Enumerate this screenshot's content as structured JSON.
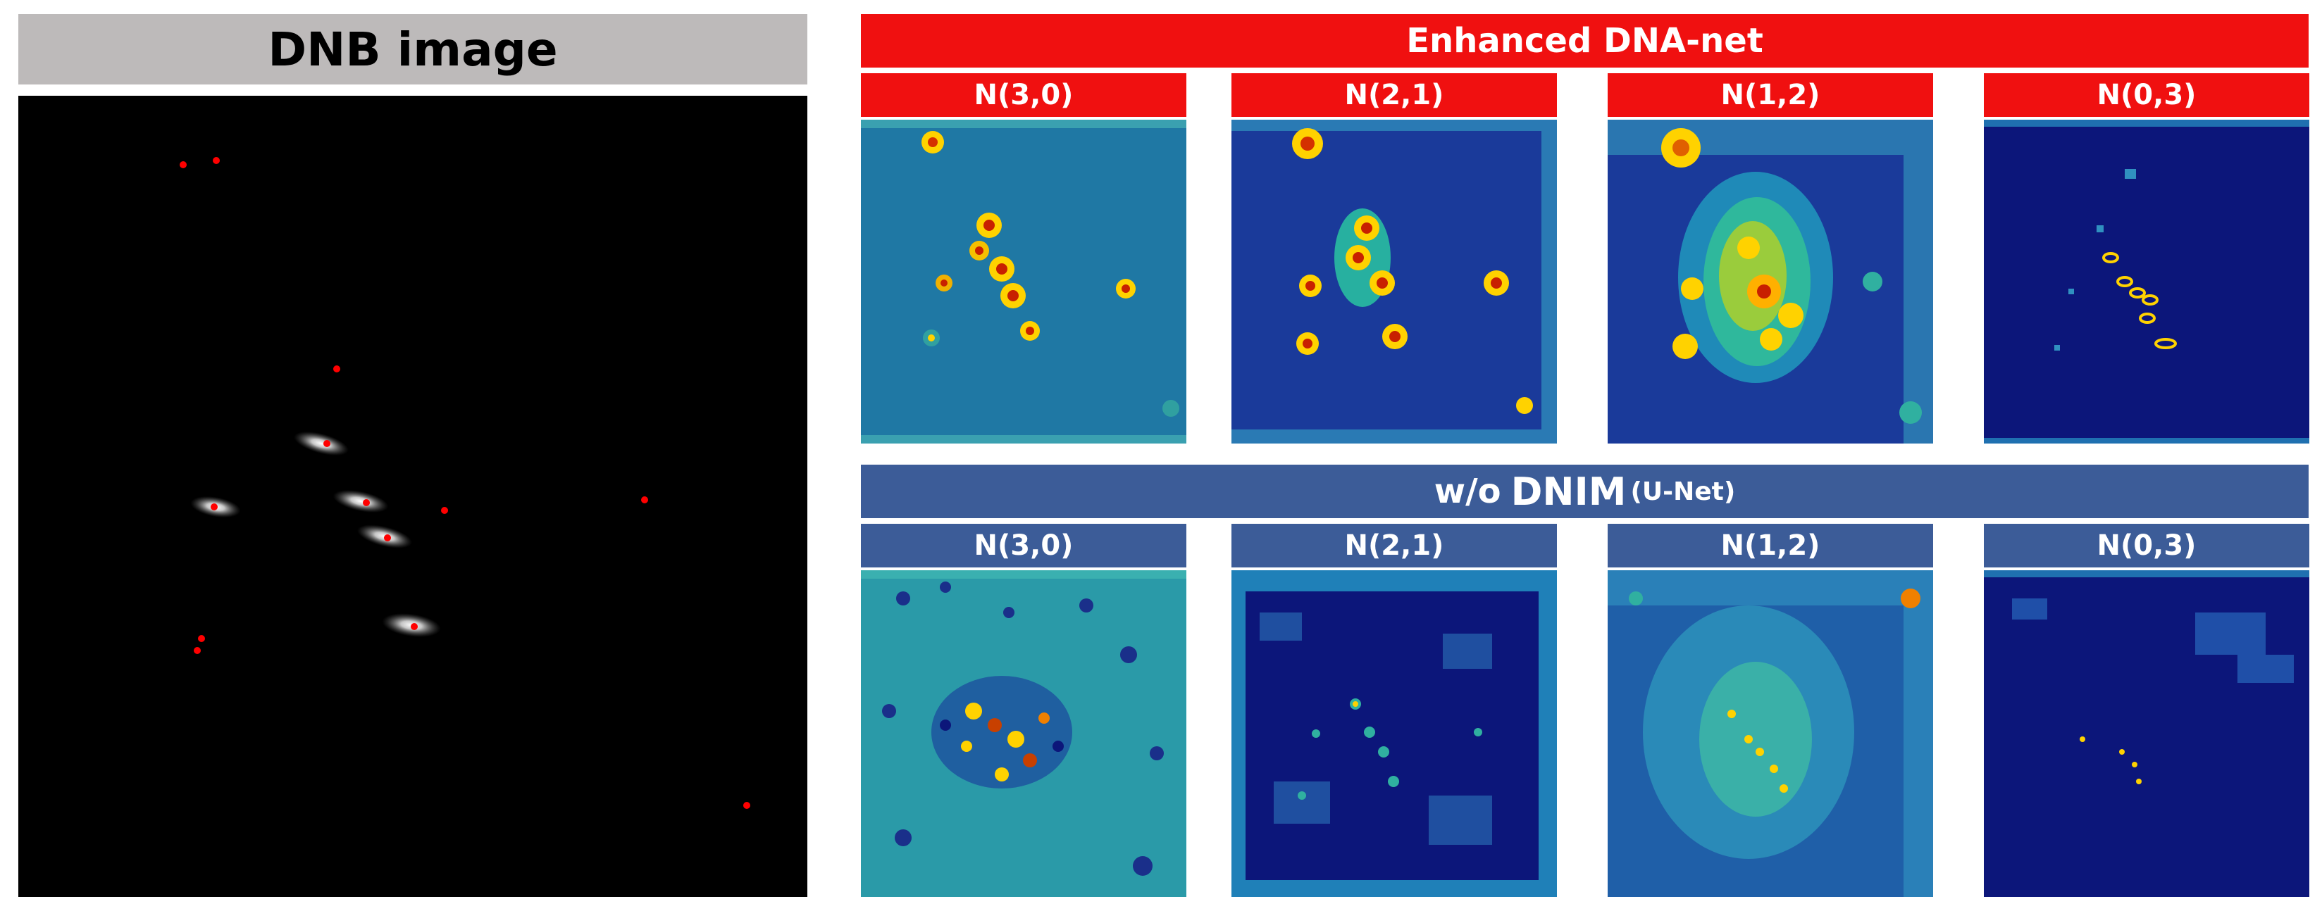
{
  "left_panel": {
    "title": "DNB image"
  },
  "enhanced": {
    "banner": "Enhanced DNA-net",
    "labels": [
      "N(3,0)",
      "N(2,1)",
      "N(1,2)",
      "N(0,3)"
    ]
  },
  "unet": {
    "banner_prefix": "w/o",
    "banner_main": "DNIM",
    "banner_suffix": "(U-Net)",
    "labels": [
      "N(3,0)",
      "N(2,1)",
      "N(1,2)",
      "N(0,3)"
    ]
  },
  "colors": {
    "red_banner": "#f01010",
    "blue_banner": "#3c5c98",
    "gray_banner": "#bdbaba",
    "marker_red": "#ff0000"
  }
}
